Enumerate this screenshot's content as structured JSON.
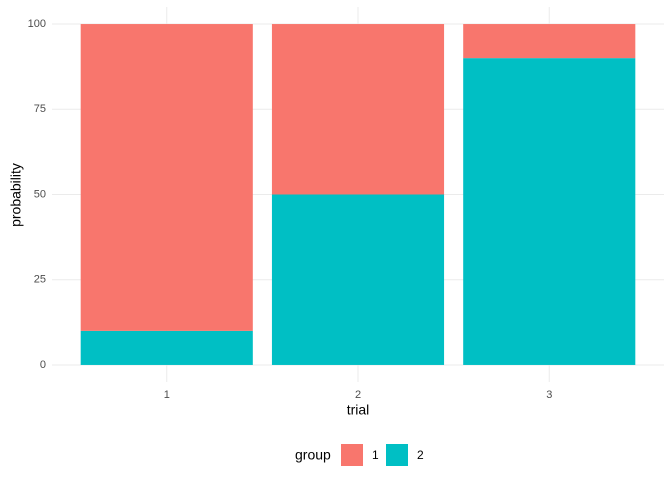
{
  "chart_data": {
    "type": "stacked_bar",
    "categories": [
      "1",
      "2",
      "3"
    ],
    "series": [
      {
        "name": "1",
        "color": "#F8766D",
        "values": [
          90,
          50,
          10
        ]
      },
      {
        "name": "2",
        "color": "#00BFC4",
        "values": [
          10,
          50,
          90
        ]
      }
    ],
    "x_label": "trial",
    "y_label": "probability",
    "legend_title": "group",
    "legend_position": "bottom",
    "ylim": [
      -5,
      105
    ],
    "yticks": [
      0,
      25,
      50,
      75,
      100
    ],
    "grid": true
  }
}
